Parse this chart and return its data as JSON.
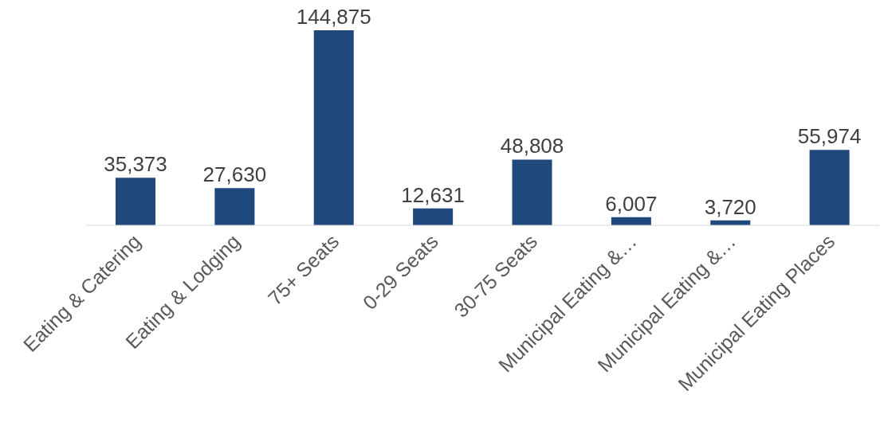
{
  "chart_data": {
    "type": "bar",
    "categories": [
      "Eating & Catering",
      "Eating & Lodging",
      "75+ Seats",
      "0-29 Seats",
      "30-75 Seats",
      "Municipal Eating &…",
      "Municipal Eating &…",
      "Municipal Eating Places"
    ],
    "values": [
      35373,
      27630,
      144875,
      12631,
      48808,
      6007,
      3720,
      55974
    ],
    "color": "#1f497d",
    "value_labels": [
      "35,373",
      "27,630",
      "144,875",
      "12,631",
      "48,808",
      "6,007",
      "3,720",
      "55,974"
    ]
  }
}
